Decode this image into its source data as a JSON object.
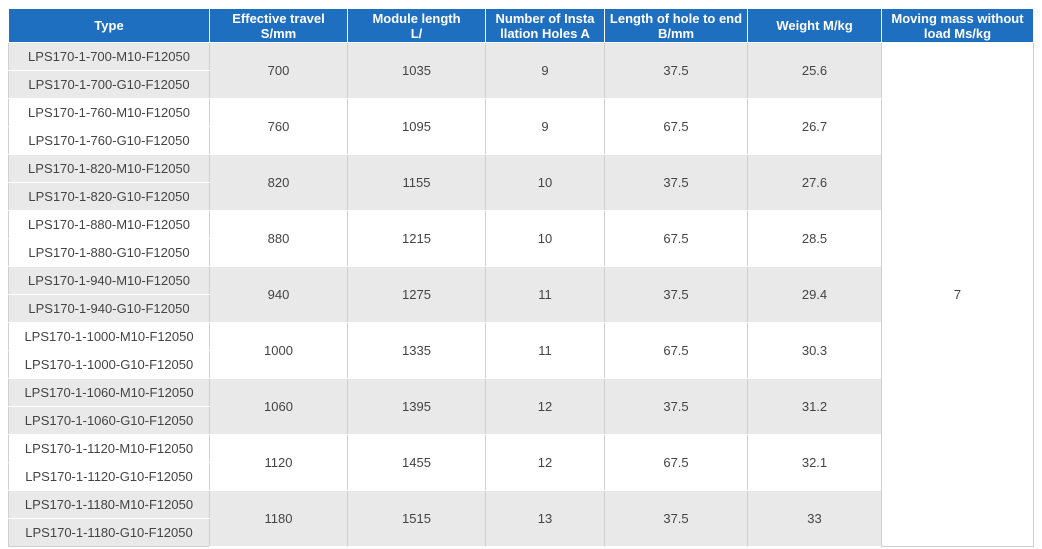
{
  "headers": [
    {
      "line1": "Type",
      "line2": ""
    },
    {
      "line1": "Effective travel",
      "line2": "S/mm"
    },
    {
      "line1": "Module length",
      "line2": "L/"
    },
    {
      "line1": "Number of Insta",
      "line2": "llation Holes A"
    },
    {
      "line1": "Length of hole to end",
      "line2": "B/mm"
    },
    {
      "line1": "Weight M/kg",
      "line2": ""
    },
    {
      "line1": "Moving mass without",
      "line2": "load Ms/kg"
    }
  ],
  "moving_mass": "7",
  "groups": [
    {
      "types": [
        "LPS170-1-700-M10-F12050",
        "LPS170-1-700-G10-F12050"
      ],
      "travel": "700",
      "length": "1035",
      "holes": "9",
      "hole_end": "37.5",
      "weight": "25.6"
    },
    {
      "types": [
        "LPS170-1-760-M10-F12050",
        "LPS170-1-760-G10-F12050"
      ],
      "travel": "760",
      "length": "1095",
      "holes": "9",
      "hole_end": "67.5",
      "weight": "26.7"
    },
    {
      "types": [
        "LPS170-1-820-M10-F12050",
        "LPS170-1-820-G10-F12050"
      ],
      "travel": "820",
      "length": "1155",
      "holes": "10",
      "hole_end": "37.5",
      "weight": "27.6"
    },
    {
      "types": [
        "LPS170-1-880-M10-F12050",
        "LPS170-1-880-G10-F12050"
      ],
      "travel": "880",
      "length": "1215",
      "holes": "10",
      "hole_end": "67.5",
      "weight": "28.5"
    },
    {
      "types": [
        "LPS170-1-940-M10-F12050",
        "LPS170-1-940-G10-F12050"
      ],
      "travel": "940",
      "length": "1275",
      "holes": "11",
      "hole_end": "37.5",
      "weight": "29.4"
    },
    {
      "types": [
        "LPS170-1-1000-M10-F12050",
        "LPS170-1-1000-G10-F12050"
      ],
      "travel": "1000",
      "length": "1335",
      "holes": "11",
      "hole_end": "67.5",
      "weight": "30.3"
    },
    {
      "types": [
        "LPS170-1-1060-M10-F12050",
        "LPS170-1-1060-G10-F12050"
      ],
      "travel": "1060",
      "length": "1395",
      "holes": "12",
      "hole_end": "37.5",
      "weight": "31.2"
    },
    {
      "types": [
        "LPS170-1-1120-M10-F12050",
        "LPS170-1-1120-G10-F12050"
      ],
      "travel": "1120",
      "length": "1455",
      "holes": "12",
      "hole_end": "67.5",
      "weight": "32.1"
    },
    {
      "types": [
        "LPS170-1-1180-M10-F12050",
        "LPS170-1-1180-G10-F12050"
      ],
      "travel": "1180",
      "length": "1515",
      "holes": "13",
      "hole_end": "37.5",
      "weight": "33"
    }
  ]
}
